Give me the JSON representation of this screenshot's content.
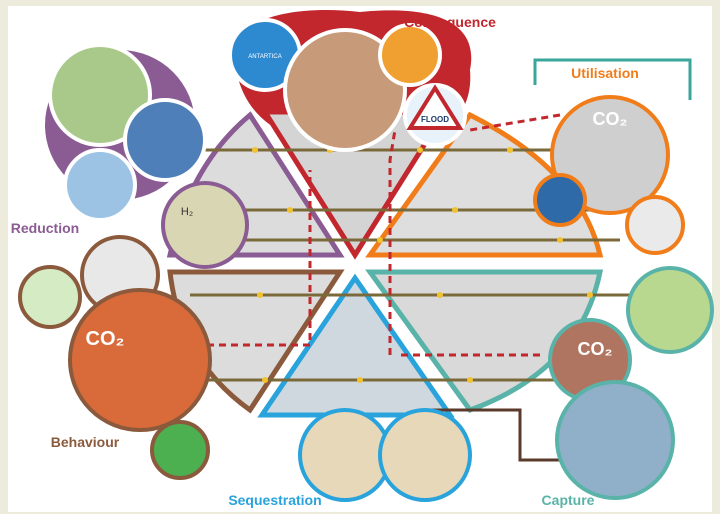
{
  "sections": [
    {
      "label": "Consequence"
    },
    {
      "label": "Utilisation"
    },
    {
      "label": "Reduction"
    },
    {
      "label": "Behaviour"
    },
    {
      "label": "Sequestration"
    },
    {
      "label": "Capture"
    }
  ],
  "icon_texts": {
    "antarctica": "ANTARTICA",
    "flood": "FLOOD",
    "hydrogen": "H₂",
    "co2_utilisation": "CO₂",
    "co2_behaviour": "CO₂",
    "co2_capture": "CO₂"
  }
}
